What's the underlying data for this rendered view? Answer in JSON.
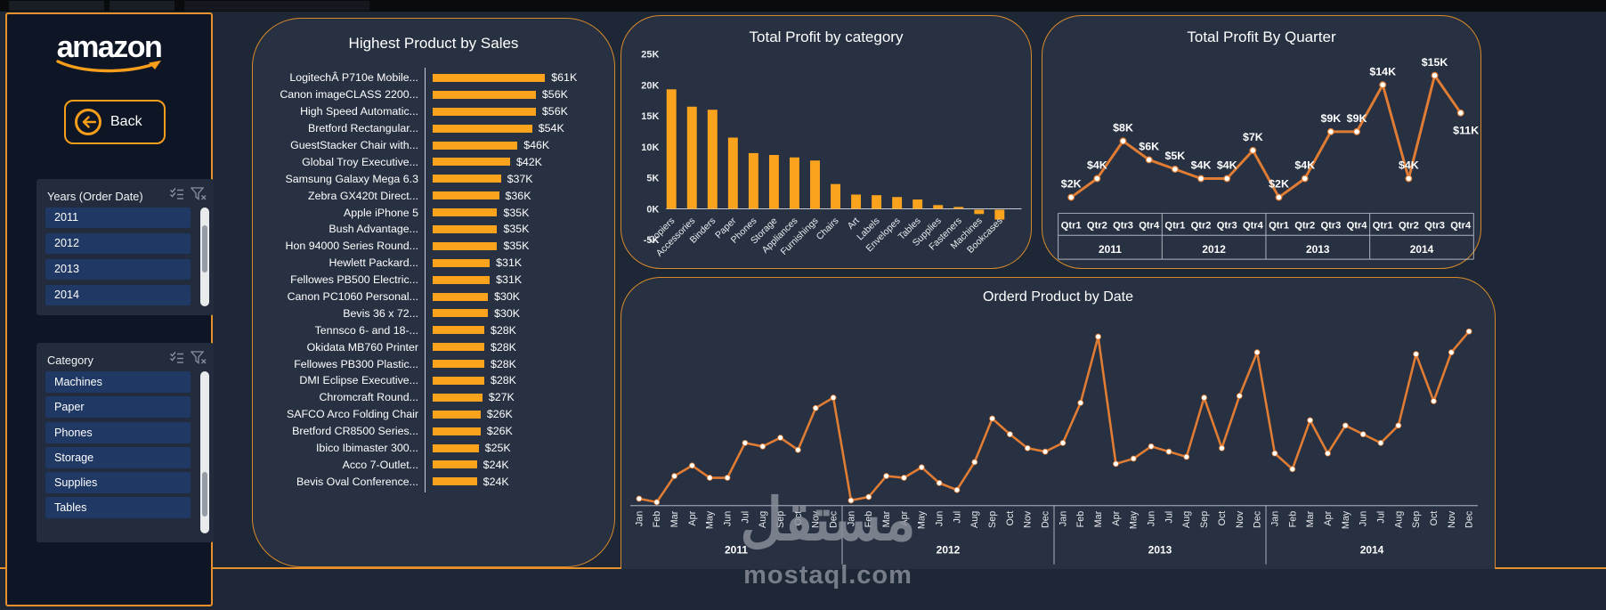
{
  "page": {
    "watermark_arabic": "مستقل",
    "watermark_latin": "mostaql.com"
  },
  "colors": {
    "accent_orange": "#F79E1B",
    "bar_orange": "#FCA31E",
    "line_orange": "#E07C33",
    "panel_border": "#D88A2B",
    "slicer_item_blue": "#1F3864",
    "canvas_bg": "#1e2736",
    "sidebar_bg": "#0e1625"
  },
  "sidebar": {
    "logo_text": "amazon",
    "back_label": "Back",
    "slicers": [
      {
        "title": "Years (Order Date)",
        "items": [
          "2011",
          "2012",
          "2013",
          "2014"
        ]
      },
      {
        "title": "Category",
        "items": [
          "Machines",
          "Paper",
          "Phones",
          "Storage",
          "Supplies",
          "Tables"
        ]
      }
    ]
  },
  "chart_data": [
    {
      "id": "highest_product_by_sales",
      "type": "barh",
      "title": "Highest Product by Sales",
      "categories": [
        "LogitechÂ P710e Mobile...",
        "Canon imageCLASS 2200...",
        "High Speed Automatic...",
        "Bretford Rectangular...",
        "GuestStacker Chair with...",
        "Global Troy Executive...",
        "Samsung Galaxy Mega 6.3",
        "Zebra GX420t Direct...",
        "Apple iPhone 5",
        "Bush Advantage...",
        "Hon 94000 Series Round...",
        "Hewlett Packard...",
        "Fellowes PB500 Electric...",
        "Canon PC1060 Personal...",
        "Bevis 36 x 72...",
        "Tennsco 6- and 18-...",
        "Okidata MB760 Printer",
        "Fellowes PB300 Plastic...",
        "DMI Eclipse Executive...",
        "Chromcraft Round...",
        "SAFCO Arco Folding Chair",
        "Bretford CR8500 Series...",
        "Ibico Ibimaster 300...",
        "Acco 7-Outlet...",
        "Bevis Oval Conference..."
      ],
      "values": [
        61,
        56,
        56,
        54,
        46,
        42,
        37,
        36,
        35,
        35,
        35,
        31,
        31,
        30,
        30,
        28,
        28,
        28,
        28,
        27,
        26,
        26,
        25,
        24,
        24
      ],
      "value_labels": [
        "$61K",
        "$56K",
        "$56K",
        "$54K",
        "$46K",
        "$42K",
        "$37K",
        "$36K",
        "$35K",
        "$35K",
        "$35K",
        "$31K",
        "$31K",
        "$30K",
        "$30K",
        "$28K",
        "$28K",
        "$28K",
        "$28K",
        "$27K",
        "$26K",
        "$26K",
        "$25K",
        "$24K",
        "$24K"
      ],
      "unit": "K USD"
    },
    {
      "id": "total_profit_by_category",
      "type": "bar",
      "title": "Total Profit by category",
      "categories": [
        "Copiers",
        "Accessories",
        "Binders",
        "Paper",
        "Phones",
        "Storage",
        "Appliances",
        "Furnishings",
        "Chairs",
        "Art",
        "Labels",
        "Envelopes",
        "Tables",
        "Supplies",
        "Fasteners",
        "Machines",
        "Bookcases"
      ],
      "values": [
        19.3,
        16.5,
        16,
        11.5,
        9,
        8.7,
        8.3,
        7.8,
        4,
        2.3,
        2.2,
        1.9,
        1.5,
        0.6,
        0.3,
        -0.7,
        -1.6
      ],
      "ylim": [
        -5,
        25
      ],
      "y_ticks": [
        "25K",
        "20K",
        "15K",
        "10K",
        "5K",
        "0K",
        "-5K"
      ],
      "unit": "K USD"
    },
    {
      "id": "total_profit_by_quarter",
      "type": "line",
      "title": "Total Profit By Quarter",
      "quarter_labels": [
        "Qtr1",
        "Qtr2",
        "Qtr3",
        "Qtr4"
      ],
      "years": [
        "2011",
        "2012",
        "2013",
        "2014"
      ],
      "values": [
        2,
        4,
        8,
        6,
        5,
        4,
        4,
        7,
        2,
        4,
        9,
        9,
        14,
        4,
        15,
        11
      ],
      "point_labels": [
        "$2K",
        "$4K",
        "$8K",
        "$6K",
        "$5K",
        "$4K",
        "$4K",
        "$7K",
        "$2K",
        "$4K",
        "$9K",
        "$9K",
        "$14K",
        "$4K",
        "$15K",
        "$11K"
      ],
      "unit": "K USD"
    },
    {
      "id": "orderd_product_by_date",
      "type": "line",
      "title": "Orderd Product by Date",
      "months": [
        "Jan",
        "Feb",
        "Mar",
        "Apr",
        "May",
        "Jun",
        "Jul",
        "Aug",
        "Sep",
        "Oct",
        "Nov",
        "Dec"
      ],
      "series": [
        {
          "year": "2011",
          "values": [
            4,
            2,
            17,
            23,
            16,
            16,
            36,
            34,
            39,
            32,
            56,
            62
          ]
        },
        {
          "year": "2012",
          "values": [
            3,
            5,
            17,
            16,
            22,
            13,
            9,
            25,
            50,
            41,
            33,
            31
          ]
        },
        {
          "year": "2013",
          "values": [
            36,
            59,
            97,
            24,
            27,
            34,
            31,
            28,
            62,
            33,
            63,
            88
          ]
        },
        {
          "year": "2014",
          "values": [
            30,
            21,
            49,
            30,
            46,
            41,
            36,
            46,
            87,
            60,
            88,
            100
          ]
        }
      ],
      "unit": "relative orders (no y-axis shown)"
    }
  ]
}
